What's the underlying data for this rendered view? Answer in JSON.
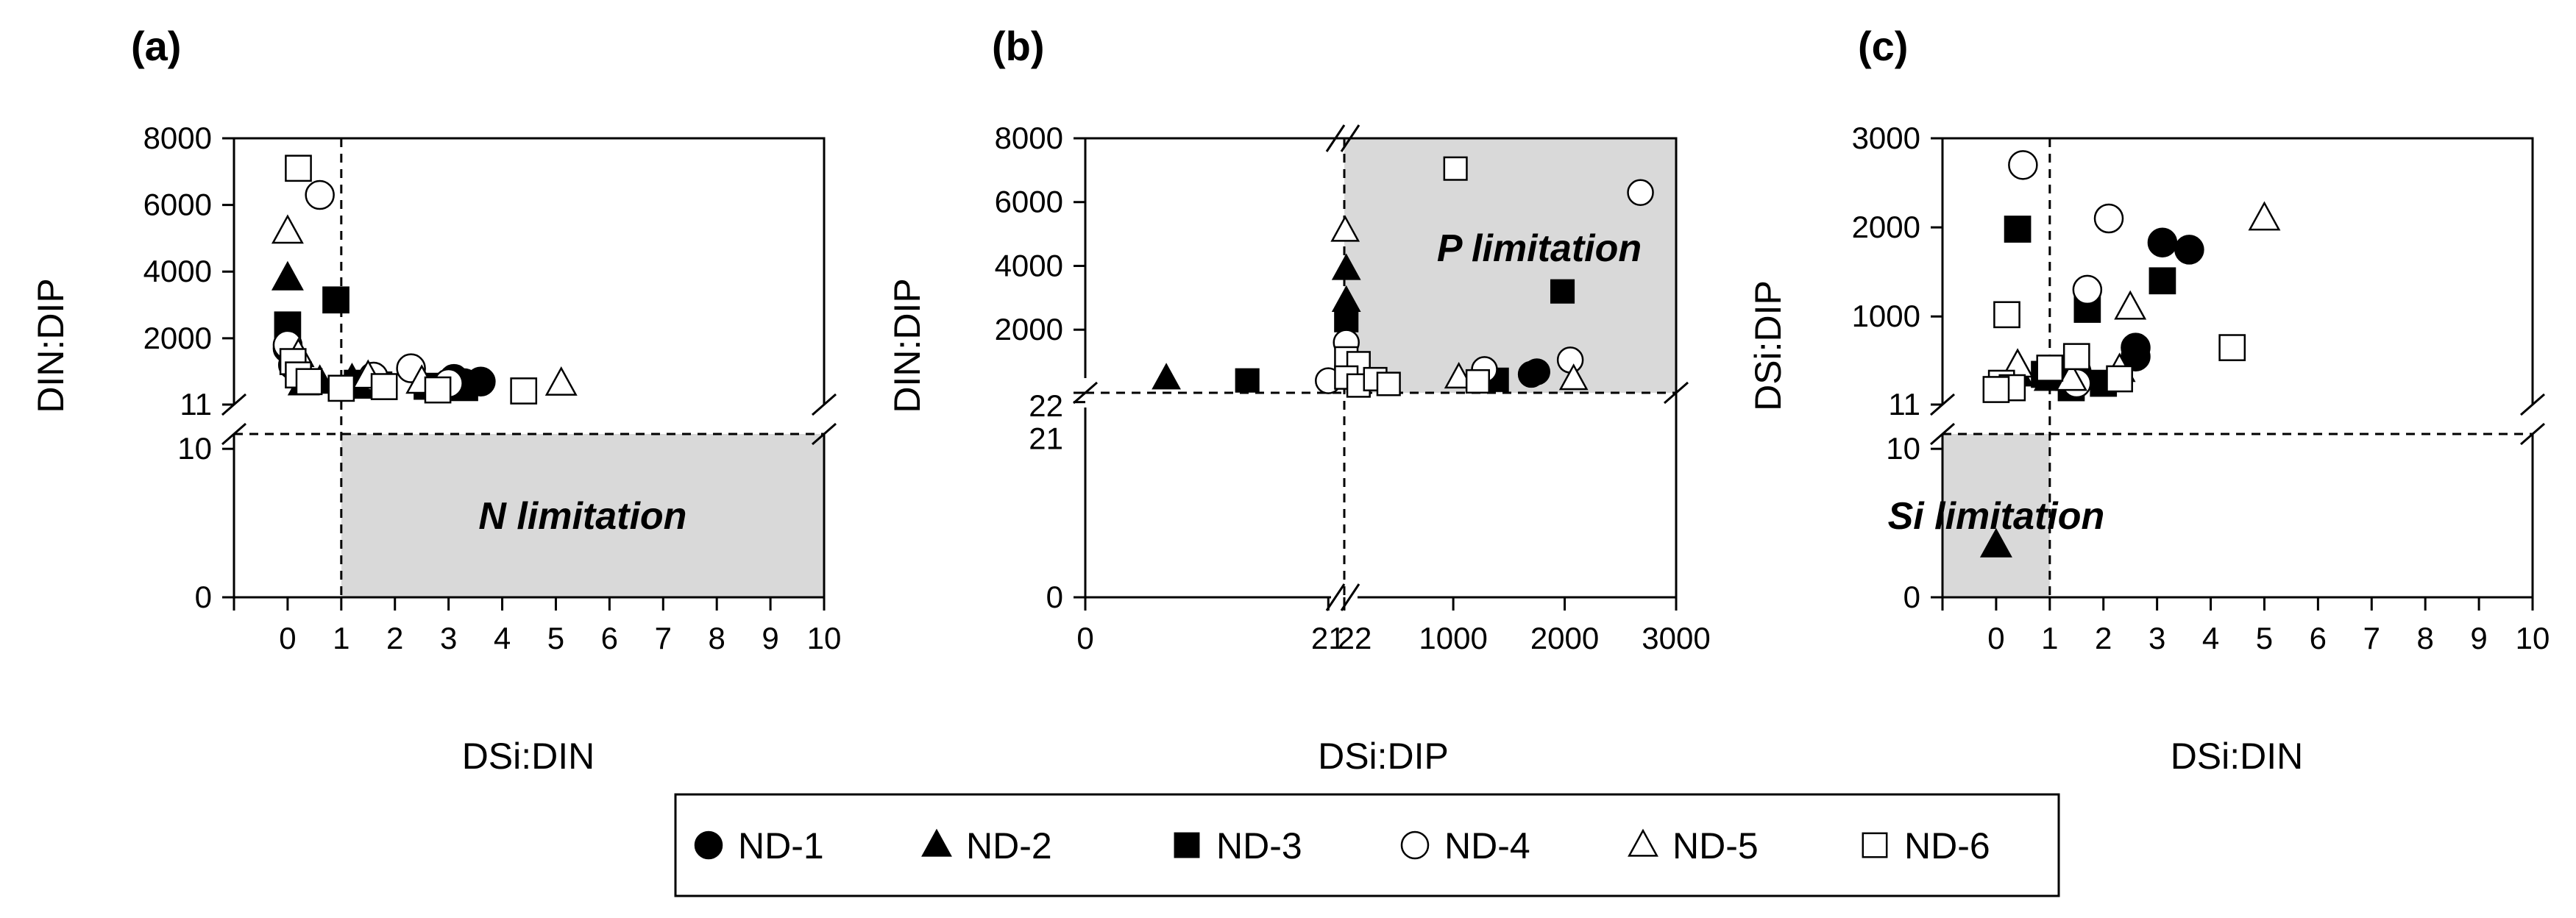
{
  "legend": [
    {
      "name": "ND-1",
      "marker": "circle",
      "filled": true
    },
    {
      "name": "ND-2",
      "marker": "triangle",
      "filled": true
    },
    {
      "name": "ND-3",
      "marker": "square",
      "filled": true
    },
    {
      "name": "ND-4",
      "marker": "circle",
      "filled": false
    },
    {
      "name": "ND-5",
      "marker": "triangle",
      "filled": false
    },
    {
      "name": "ND-6",
      "marker": "square",
      "filled": false
    }
  ],
  "colors": {
    "axis": "#000000",
    "shade": "#d9d9d9",
    "marker_fill": "#000000",
    "marker_open": "#ffffff"
  },
  "chart_data": [
    {
      "panel": "(a)",
      "type": "scatter",
      "xlabel": "DSi:DIN",
      "ylabel": "DIN:DIP",
      "x_ticks": [
        "0",
        "1",
        "2",
        "3",
        "4",
        "5",
        "6",
        "7",
        "8",
        "9",
        "10"
      ],
      "y_ticks_upper": [
        "11",
        "2000",
        "4000",
        "6000",
        "8000"
      ],
      "y_ticks_lower": [
        "0",
        "10"
      ],
      "x_range": [
        -1,
        10
      ],
      "y_range_lower": [
        0,
        11
      ],
      "y_range_upper": [
        11,
        8000
      ],
      "threshold_x": 1,
      "threshold_y": 11,
      "region_label": "N limitation",
      "series": [
        {
          "name": "ND-1",
          "points": [
            [
              0.0,
              1700
            ],
            [
              0.1,
              1200
            ],
            [
              3.1,
              780
            ],
            [
              3.6,
              700
            ],
            [
              3.3,
              650
            ]
          ]
        },
        {
          "name": "ND-2",
          "points": [
            [
              0.0,
              3800
            ],
            [
              0.6,
              700
            ],
            [
              1.2,
              750
            ],
            [
              0.3,
              650
            ],
            [
              1.5,
              550
            ]
          ]
        },
        {
          "name": "ND-3",
          "points": [
            [
              0.0,
              2400
            ],
            [
              0.9,
              3150
            ],
            [
              1.3,
              650
            ],
            [
              1.7,
              600
            ],
            [
              2.6,
              560
            ],
            [
              3.3,
              520
            ]
          ]
        },
        {
          "name": "ND-4",
          "points": [
            [
              0.6,
              6300
            ],
            [
              0.0,
              1800
            ],
            [
              2.3,
              1100
            ],
            [
              1.6,
              850
            ],
            [
              3.0,
              650
            ]
          ]
        },
        {
          "name": "ND-5",
          "points": [
            [
              0.0,
              5200
            ],
            [
              0.2,
              1500
            ],
            [
              1.5,
              850
            ],
            [
              2.5,
              700
            ],
            [
              5.1,
              640
            ]
          ]
        },
        {
          "name": "ND-6",
          "points": [
            [
              0.2,
              7100
            ],
            [
              0.1,
              1300
            ],
            [
              0.2,
              900
            ],
            [
              0.4,
              700
            ],
            [
              1.8,
              550
            ],
            [
              2.8,
              450
            ],
            [
              4.4,
              420
            ],
            [
              1.0,
              500
            ]
          ]
        }
      ]
    },
    {
      "panel": "(b)",
      "type": "scatter",
      "xlabel": "DSi:DIP",
      "ylabel": "DIN:DIP",
      "x_ticks_lower": [
        "0",
        "21"
      ],
      "x_ticks_upper": [
        "22",
        "1000",
        "2000",
        "3000"
      ],
      "y_ticks_upper": [
        "22",
        "2000",
        "4000",
        "6000",
        "8000"
      ],
      "y_ticks_lower": [
        "0",
        "21"
      ],
      "x_range_lower": [
        0,
        22
      ],
      "x_range_upper": [
        22,
        3000
      ],
      "y_range_lower": [
        0,
        22
      ],
      "y_range_upper": [
        22,
        8000
      ],
      "threshold_x": 22,
      "threshold_y": 22,
      "region_label": "P limitation",
      "series": [
        {
          "name": "ND-1",
          "points": [
            [
              1700,
              600
            ],
            [
              1750,
              680
            ]
          ]
        },
        {
          "name": "ND-2",
          "points": [
            [
              7,
              470
            ],
            [
              40,
              3900
            ],
            [
              40,
              2900
            ],
            [
              120,
              500
            ]
          ]
        },
        {
          "name": "ND-3",
          "points": [
            [
              14,
              410
            ],
            [
              40,
              2300
            ],
            [
              1390,
              430
            ],
            [
              1980,
              3200
            ]
          ]
        },
        {
          "name": "ND-4",
          "points": [
            [
              21,
              400
            ],
            [
              40,
              1600
            ],
            [
              1280,
              750
            ],
            [
              2050,
              1050
            ],
            [
              2680,
              6300
            ]
          ]
        },
        {
          "name": "ND-5",
          "points": [
            [
              30,
              5100
            ],
            [
              200,
              700
            ],
            [
              1050,
              500
            ],
            [
              2080,
              450
            ]
          ]
        },
        {
          "name": "ND-6",
          "points": [
            [
              1020,
              7050
            ],
            [
              40,
              1100
            ],
            [
              150,
              950
            ],
            [
              40,
              500
            ],
            [
              150,
              250
            ],
            [
              300,
              450
            ],
            [
              420,
              300
            ],
            [
              1220,
              380
            ]
          ]
        }
      ]
    },
    {
      "panel": "(c)",
      "type": "scatter",
      "xlabel": "DSi:DIN",
      "ylabel": "DSi:DIP",
      "x_ticks": [
        "0",
        "1",
        "2",
        "3",
        "4",
        "5",
        "6",
        "7",
        "8",
        "9",
        "10"
      ],
      "y_ticks_upper": [
        "11",
        "1000",
        "2000",
        "3000"
      ],
      "y_ticks_lower": [
        "0",
        "10"
      ],
      "x_range": [
        -1,
        10
      ],
      "y_range_lower": [
        0,
        11
      ],
      "y_range_upper": [
        11,
        3000
      ],
      "threshold_x": 1,
      "threshold_y": 11,
      "region_label": "Si limitation",
      "series": [
        {
          "name": "ND-1",
          "points": [
            [
              3.1,
              1830
            ],
            [
              3.6,
              1750
            ],
            [
              2.6,
              650
            ],
            [
              2.6,
              550
            ],
            [
              1.5,
              380
            ]
          ]
        },
        {
          "name": "ND-2",
          "points": [
            [
              0.0,
              3.5
            ],
            [
              0.4,
              350
            ],
            [
              1.0,
              300
            ],
            [
              1.5,
              420
            ]
          ]
        },
        {
          "name": "ND-3",
          "points": [
            [
              0.4,
              1980
            ],
            [
              1.7,
              1080
            ],
            [
              3.1,
              1400
            ],
            [
              0.9,
              350
            ],
            [
              1.4,
              200
            ],
            [
              2.0,
              250
            ]
          ]
        },
        {
          "name": "ND-4",
          "points": [
            [
              0.5,
              2700
            ],
            [
              2.1,
              2100
            ],
            [
              1.7,
              1300
            ],
            [
              1.5,
              250
            ],
            [
              0.2,
              220
            ]
          ]
        },
        {
          "name": "ND-5",
          "points": [
            [
              5.0,
              2100
            ],
            [
              2.5,
              1100
            ],
            [
              0.4,
              450
            ],
            [
              2.3,
              400
            ],
            [
              1.4,
              300
            ]
          ]
        },
        {
          "name": "ND-6",
          "points": [
            [
              0.2,
              1020
            ],
            [
              4.4,
              650
            ],
            [
              1.5,
              550
            ],
            [
              1.0,
              420
            ],
            [
              2.3,
              300
            ],
            [
              0.1,
              250
            ],
            [
              0.3,
              200
            ],
            [
              0.0,
              180
            ]
          ]
        }
      ]
    }
  ]
}
